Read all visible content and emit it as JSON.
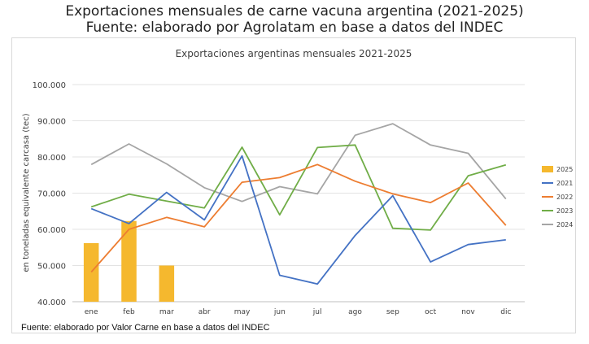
{
  "header": {
    "title_line1": "Exportaciones mensuales de carne vacuna argentina (2021-2025)",
    "title_line2": "Fuente: elaborado por Agrolatam en base a datos del INDEC"
  },
  "footer": {
    "source": "Fuente: elaborado por  Valor Carne en base a datos del INDEC"
  },
  "chart_data": {
    "type": "line",
    "title": "Exportaciones argentinas mensuales 2021-2025",
    "xlabel": "",
    "ylabel": "en toneladas equivalente carcasa (tec)",
    "ylim": [
      40000,
      100000
    ],
    "yticks": [
      40000,
      50000,
      60000,
      70000,
      80000,
      90000,
      100000
    ],
    "ytick_labels": [
      "40.000",
      "50.000",
      "60.000",
      "70.000",
      "80.000",
      "90.000",
      "100.000"
    ],
    "categories": [
      "ene",
      "feb",
      "mar",
      "abr",
      "may",
      "jun",
      "jul",
      "ago",
      "sep",
      "oct",
      "nov",
      "dic"
    ],
    "grid": true,
    "legend_position": "right",
    "bar_series": {
      "name": "2025",
      "color": "#f5b82e",
      "values": [
        56200,
        62300,
        50000
      ]
    },
    "series": [
      {
        "name": "2021",
        "color": "#4472c4",
        "values": [
          65700,
          61600,
          70200,
          62600,
          80300,
          47300,
          44900,
          58300,
          69300,
          51000,
          55800,
          57100
        ]
      },
      {
        "name": "2022",
        "color": "#ed7d31",
        "values": [
          48200,
          60000,
          63300,
          60700,
          73000,
          74300,
          77900,
          73300,
          69800,
          67400,
          72800,
          61100
        ]
      },
      {
        "name": "2023",
        "color": "#70ad47",
        "values": [
          66200,
          69700,
          67800,
          65900,
          82700,
          64000,
          82600,
          83300,
          60300,
          59800,
          74800,
          77800
        ]
      },
      {
        "name": "2024",
        "color": "#a5a5a5",
        "values": [
          77900,
          83600,
          78100,
          71500,
          67700,
          71800,
          69800,
          86000,
          89200,
          83300,
          81000,
          68400
        ]
      }
    ]
  }
}
